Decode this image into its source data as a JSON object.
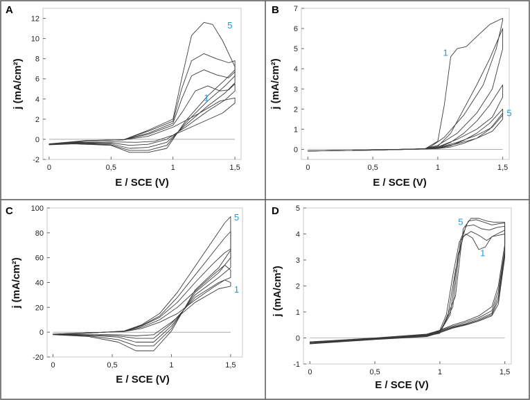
{
  "colors": {
    "frame": "#555555",
    "curve": "#3a3a3a",
    "annotation": "#1a9ad6"
  },
  "chart_data": [
    {
      "panel": "A",
      "type": "line",
      "xlabel": "E / SCE (V)",
      "ylabel": "j (mA/cm²)",
      "xlim": [
        -0.05,
        1.55
      ],
      "ylim": [
        -2,
        13
      ],
      "xticks": [
        0,
        0.5,
        1,
        1.5
      ],
      "xtick_labels": [
        "0",
        "0,5",
        "1",
        "1,5"
      ],
      "yticks": [
        -2,
        0,
        2,
        4,
        6,
        8,
        10,
        12
      ],
      "ytick_labels": [
        "-2",
        "0",
        "2",
        "4",
        "6",
        "8",
        "10",
        "12"
      ],
      "cycle_labels": [
        {
          "text": "5",
          "x": 1.46,
          "y": 11.0
        },
        {
          "text": "1",
          "x": 1.27,
          "y": 3.8
        }
      ],
      "series": [
        {
          "name": "cycle 1",
          "x": [
            0,
            0.3,
            0.6,
            0.8,
            1.0,
            1.2,
            1.38,
            1.5,
            1.5,
            1.4,
            1.2,
            1.0,
            0.85,
            0.7,
            0.5,
            0.2,
            0
          ],
          "y": [
            -0.45,
            -0.12,
            -0.05,
            0.3,
            1.2,
            2.5,
            3.8,
            4.1,
            3.6,
            2.6,
            1.5,
            0.4,
            -0.2,
            -0.3,
            -0.25,
            -0.3,
            -0.45
          ]
        },
        {
          "name": "cycle 2",
          "x": [
            0,
            0.3,
            0.6,
            0.8,
            1.0,
            1.08,
            1.18,
            1.28,
            1.38,
            1.45,
            1.5,
            1.5,
            1.42,
            1.28,
            1.1,
            0.95,
            0.8,
            0.65,
            0.5,
            0.2,
            0
          ],
          "y": [
            -0.48,
            -0.13,
            -0.05,
            0.5,
            1.4,
            2.8,
            4.8,
            5.3,
            4.8,
            4.9,
            5.5,
            4.8,
            3.9,
            2.8,
            1.2,
            0.0,
            -0.5,
            -0.6,
            -0.35,
            -0.35,
            -0.48
          ]
        },
        {
          "name": "cycle 3",
          "x": [
            0,
            0.3,
            0.6,
            0.8,
            1.0,
            1.07,
            1.15,
            1.25,
            1.35,
            1.45,
            1.5,
            1.5,
            1.42,
            1.28,
            1.1,
            0.95,
            0.8,
            0.65,
            0.5,
            0.2,
            0
          ],
          "y": [
            -0.5,
            -0.14,
            -0.05,
            0.6,
            1.6,
            4.0,
            6.3,
            6.9,
            6.4,
            6.1,
            6.7,
            5.6,
            4.6,
            3.3,
            1.4,
            -0.3,
            -0.8,
            -0.9,
            -0.45,
            -0.38,
            -0.5
          ]
        },
        {
          "name": "cycle 4",
          "x": [
            0,
            0.3,
            0.6,
            0.8,
            1.0,
            1.07,
            1.15,
            1.25,
            1.35,
            1.45,
            1.5,
            1.5,
            1.42,
            1.28,
            1.1,
            0.95,
            0.8,
            0.65,
            0.5,
            0.2,
            0
          ],
          "y": [
            -0.52,
            -0.15,
            -0.05,
            0.8,
            1.8,
            5.0,
            7.8,
            8.5,
            8.0,
            7.6,
            7.8,
            6.3,
            5.3,
            3.8,
            1.6,
            -0.6,
            -1.1,
            -1.1,
            -0.55,
            -0.4,
            -0.52
          ]
        },
        {
          "name": "cycle 5",
          "x": [
            0,
            0.3,
            0.6,
            0.8,
            1.0,
            1.07,
            1.15,
            1.25,
            1.32,
            1.4,
            1.5,
            1.5,
            1.42,
            1.28,
            1.1,
            0.95,
            0.8,
            0.65,
            0.5,
            0.2,
            0
          ],
          "y": [
            -0.55,
            -0.16,
            -0.05,
            0.9,
            2.0,
            6.0,
            10.3,
            11.6,
            11.4,
            9.8,
            7.2,
            6.9,
            5.9,
            4.3,
            1.8,
            -0.9,
            -1.3,
            -1.3,
            -0.6,
            -0.45,
            -0.55
          ]
        }
      ]
    },
    {
      "panel": "B",
      "type": "line",
      "xlabel": "E / SCE (V)",
      "ylabel": "j (mA/cm²)",
      "xlim": [
        -0.05,
        1.55
      ],
      "ylim": [
        -0.5,
        7
      ],
      "xticks": [
        0,
        0.5,
        1,
        1.5
      ],
      "xtick_labels": [
        "0",
        "0,5",
        "1",
        "1,5"
      ],
      "yticks": [
        0,
        1,
        2,
        3,
        4,
        5,
        6,
        7
      ],
      "ytick_labels": [
        "0",
        "1",
        "2",
        "3",
        "4",
        "5",
        "6",
        "7"
      ],
      "cycle_labels": [
        {
          "text": "1",
          "x": 1.06,
          "y": 4.65
        },
        {
          "text": "5",
          "x": 1.55,
          "y": 1.65
        }
      ],
      "series": [
        {
          "name": "cycle 1",
          "x": [
            0,
            0.5,
            0.9,
            1.0,
            1.05,
            1.1,
            1.15,
            1.22,
            1.3,
            1.4,
            1.48,
            1.5,
            1.5,
            1.45,
            1.35,
            1.2,
            1.05,
            0.95,
            0.9,
            0.5,
            0
          ],
          "y": [
            -0.08,
            -0.04,
            0.02,
            0.4,
            2.2,
            4.6,
            5.0,
            5.1,
            5.6,
            6.2,
            6.45,
            6.5,
            6.4,
            5.0,
            3.2,
            1.7,
            0.6,
            0.15,
            0.03,
            -0.03,
            -0.08
          ]
        },
        {
          "name": "cycle 2",
          "x": [
            0,
            0.5,
            0.9,
            1.0,
            1.1,
            1.2,
            1.3,
            1.4,
            1.5,
            1.5,
            1.42,
            1.3,
            1.15,
            1.0,
            0.9,
            0.5,
            0
          ],
          "y": [
            -0.08,
            -0.04,
            0.02,
            0.15,
            0.8,
            2.0,
            3.2,
            4.5,
            6.0,
            5.0,
            3.0,
            1.8,
            0.8,
            0.2,
            0.03,
            -0.03,
            -0.08
          ]
        },
        {
          "name": "cycle 3",
          "x": [
            0,
            0.5,
            0.9,
            1.0,
            1.1,
            1.2,
            1.3,
            1.4,
            1.5,
            1.5,
            1.42,
            1.3,
            1.15,
            1.0,
            0.9,
            0.5,
            0
          ],
          "y": [
            -0.08,
            -0.04,
            0.02,
            0.08,
            0.35,
            0.8,
            1.4,
            2.2,
            3.2,
            2.6,
            1.6,
            1.0,
            0.5,
            0.12,
            0.03,
            -0.03,
            -0.08
          ]
        },
        {
          "name": "cycle 4",
          "x": [
            0,
            0.5,
            0.9,
            1.0,
            1.1,
            1.2,
            1.3,
            1.4,
            1.5,
            1.5,
            1.42,
            1.3,
            1.15,
            1.0,
            0.9,
            0.5,
            0
          ],
          "y": [
            -0.08,
            -0.04,
            0.02,
            0.05,
            0.18,
            0.45,
            0.8,
            1.3,
            2.0,
            1.7,
            1.1,
            0.7,
            0.35,
            0.08,
            0.03,
            -0.03,
            -0.08
          ]
        },
        {
          "name": "cycle 5",
          "x": [
            0,
            0.5,
            0.9,
            1.0,
            1.1,
            1.2,
            1.3,
            1.4,
            1.5,
            1.5,
            1.42,
            1.3,
            1.15,
            1.0,
            0.9,
            0.5,
            0
          ],
          "y": [
            -0.08,
            -0.04,
            0.02,
            0.04,
            0.12,
            0.3,
            0.55,
            1.0,
            1.8,
            1.5,
            0.9,
            0.55,
            0.28,
            0.06,
            0.03,
            -0.03,
            -0.08
          ]
        }
      ]
    },
    {
      "panel": "C",
      "type": "line",
      "xlabel": "E / SCE (V)",
      "ylabel": "j (mA/cm²)",
      "xlim": [
        -0.05,
        1.6
      ],
      "ylim": [
        -20,
        100
      ],
      "xticks": [
        0,
        0.5,
        1,
        1.5
      ],
      "xtick_labels": [
        "0",
        "0,5",
        "1",
        "1,5"
      ],
      "yticks": [
        -20,
        0,
        20,
        40,
        60,
        80,
        100
      ],
      "ytick_labels": [
        "-20",
        "0",
        "20",
        "40",
        "60",
        "80",
        "100"
      ],
      "cycle_labels": [
        {
          "text": "5",
          "x": 1.55,
          "y": 90
        },
        {
          "text": "1",
          "x": 1.55,
          "y": 32
        }
      ],
      "series": [
        {
          "name": "cycle 1",
          "x": [
            0,
            0.3,
            0.6,
            0.75,
            0.9,
            1.05,
            1.2,
            1.35,
            1.45,
            1.5,
            1.5,
            1.4,
            1.2,
            1.0,
            0.85,
            0.7,
            0.55,
            0.3,
            0
          ],
          "y": [
            -1.5,
            -0.5,
            0.5,
            3,
            8,
            15,
            26,
            36,
            42,
            40,
            37,
            35,
            24,
            8,
            -2,
            -3,
            -2,
            -2,
            -1.5
          ]
        },
        {
          "name": "cycle 2",
          "x": [
            0,
            0.3,
            0.6,
            0.75,
            0.9,
            1.05,
            1.2,
            1.35,
            1.45,
            1.5,
            1.5,
            1.4,
            1.2,
            1.0,
            0.85,
            0.7,
            0.55,
            0.3,
            0
          ],
          "y": [
            -1.6,
            -0.6,
            0.6,
            4,
            10,
            20,
            33,
            46,
            54,
            50,
            44,
            40,
            28,
            7,
            -5,
            -5,
            -3,
            -2,
            -1.6
          ]
        },
        {
          "name": "cycle 3",
          "x": [
            0,
            0.3,
            0.6,
            0.75,
            0.9,
            1.05,
            1.2,
            1.35,
            1.45,
            1.5,
            1.5,
            1.4,
            1.2,
            1.0,
            0.85,
            0.7,
            0.55,
            0.3,
            0
          ],
          "y": [
            -1.7,
            -0.6,
            0.7,
            5,
            12,
            24,
            40,
            55,
            64,
            67,
            52,
            44,
            30,
            5,
            -8,
            -8,
            -4,
            -2.5,
            -1.7
          ]
        },
        {
          "name": "cycle 4",
          "x": [
            0,
            0.3,
            0.6,
            0.75,
            0.9,
            1.05,
            1.2,
            1.35,
            1.45,
            1.5,
            1.5,
            1.4,
            1.2,
            1.0,
            0.85,
            0.7,
            0.55,
            0.3,
            0
          ],
          "y": [
            -1.8,
            -0.7,
            0.8,
            5.5,
            13,
            28,
            46,
            64,
            76,
            81,
            60,
            48,
            32,
            3,
            -11,
            -11,
            -6,
            -3,
            -1.8
          ]
        },
        {
          "name": "cycle 5",
          "x": [
            0,
            0.3,
            0.6,
            0.75,
            0.9,
            1.05,
            1.2,
            1.35,
            1.45,
            1.5,
            1.5,
            1.4,
            1.2,
            1.0,
            0.85,
            0.7,
            0.55,
            0.3,
            0
          ],
          "y": [
            -2,
            -0.8,
            1,
            6,
            15,
            32,
            53,
            74,
            88,
            93,
            66,
            52,
            34,
            1,
            -15,
            -15,
            -8,
            -3.5,
            -2
          ]
        }
      ]
    },
    {
      "panel": "D",
      "type": "line",
      "xlabel": "E / SCE (V)",
      "ylabel": "j (mA/cm²)",
      "xlim": [
        -0.05,
        1.55
      ],
      "ylim": [
        -1,
        5
      ],
      "xticks": [
        0,
        0.5,
        1,
        1.5
      ],
      "xtick_labels": [
        "0",
        "0,5",
        "1",
        "1,5"
      ],
      "yticks": [
        -1,
        0,
        1,
        2,
        3,
        4,
        5
      ],
      "ytick_labels": [
        "-1",
        "0",
        "1",
        "2",
        "3",
        "4",
        "5"
      ],
      "cycle_labels": [
        {
          "text": "5",
          "x": 1.16,
          "y": 4.35
        },
        {
          "text": "1",
          "x": 1.33,
          "y": 3.15
        }
      ],
      "series": [
        {
          "name": "cycle 1",
          "x": [
            0,
            0.5,
            0.9,
            1.0,
            1.05,
            1.1,
            1.15,
            1.2,
            1.25,
            1.3,
            1.35,
            1.4,
            1.45,
            1.5,
            1.5,
            1.45,
            1.4,
            1.3,
            1.2,
            1.1,
            1.0,
            0.9,
            0.5,
            0
          ],
          "y": [
            -0.15,
            0.0,
            0.15,
            0.3,
            0.9,
            2.4,
            3.7,
            4.0,
            3.85,
            3.4,
            3.5,
            3.9,
            3.95,
            4.0,
            3.6,
            2.0,
            1.2,
            0.85,
            0.65,
            0.5,
            0.3,
            0.12,
            -0.02,
            -0.15
          ]
        },
        {
          "name": "cycle 2",
          "x": [
            0,
            0.5,
            0.9,
            1.0,
            1.06,
            1.12,
            1.18,
            1.24,
            1.3,
            1.36,
            1.42,
            1.48,
            1.5,
            1.5,
            1.45,
            1.4,
            1.3,
            1.2,
            1.1,
            1.0,
            0.9,
            0.5,
            0
          ],
          "y": [
            -0.17,
            -0.01,
            0.13,
            0.25,
            0.8,
            2.6,
            3.9,
            4.1,
            3.95,
            3.75,
            3.95,
            4.1,
            4.15,
            3.4,
            1.8,
            1.05,
            0.78,
            0.6,
            0.45,
            0.28,
            0.1,
            -0.03,
            -0.17
          ]
        },
        {
          "name": "cycle 3",
          "x": [
            0,
            0.5,
            0.9,
            1.0,
            1.08,
            1.14,
            1.2,
            1.26,
            1.32,
            1.38,
            1.44,
            1.5,
            1.5,
            1.45,
            1.4,
            1.3,
            1.2,
            1.1,
            1.0,
            0.9,
            0.5,
            0
          ],
          "y": [
            -0.19,
            -0.02,
            0.12,
            0.22,
            0.9,
            3.2,
            4.3,
            4.35,
            4.2,
            4.15,
            4.25,
            4.3,
            3.3,
            1.6,
            0.95,
            0.72,
            0.55,
            0.42,
            0.25,
            0.08,
            -0.04,
            -0.19
          ]
        },
        {
          "name": "cycle 4",
          "x": [
            0,
            0.5,
            0.9,
            1.0,
            1.1,
            1.16,
            1.22,
            1.28,
            1.34,
            1.4,
            1.46,
            1.5,
            1.5,
            1.45,
            1.4,
            1.3,
            1.2,
            1.1,
            1.0,
            0.9,
            0.5,
            0
          ],
          "y": [
            -0.21,
            -0.03,
            0.1,
            0.2,
            1.2,
            3.8,
            4.5,
            4.55,
            4.45,
            4.35,
            4.4,
            4.42,
            3.2,
            1.45,
            0.9,
            0.68,
            0.52,
            0.4,
            0.23,
            0.06,
            -0.05,
            -0.21
          ]
        },
        {
          "name": "cycle 5",
          "x": [
            0,
            0.5,
            0.9,
            1.0,
            1.12,
            1.18,
            1.24,
            1.3,
            1.36,
            1.42,
            1.48,
            1.5,
            1.5,
            1.45,
            1.4,
            1.3,
            1.2,
            1.1,
            1.0,
            0.9,
            0.5,
            0
          ],
          "y": [
            -0.23,
            -0.04,
            0.08,
            0.18,
            1.6,
            4.2,
            4.6,
            4.6,
            4.5,
            4.45,
            4.45,
            4.45,
            3.1,
            1.3,
            0.85,
            0.65,
            0.5,
            0.38,
            0.2,
            0.05,
            -0.06,
            -0.23
          ]
        }
      ]
    }
  ]
}
